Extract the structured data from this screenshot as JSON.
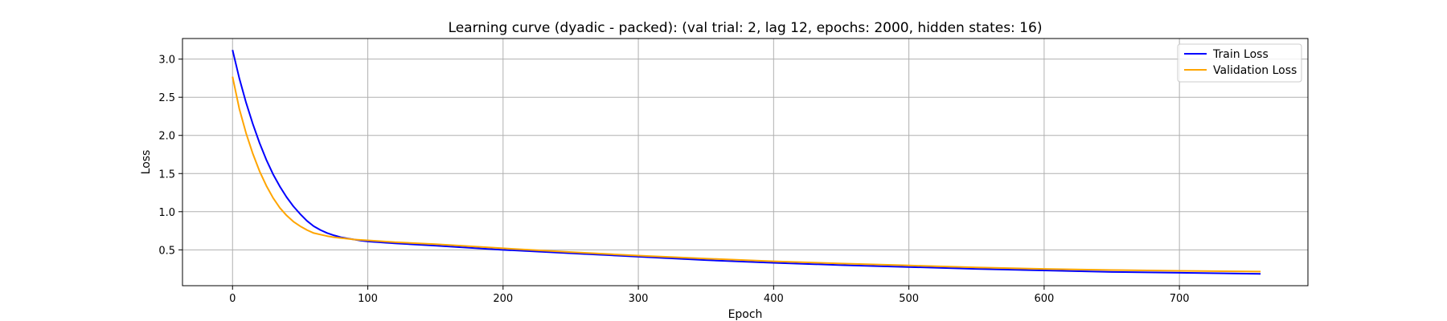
{
  "chart_data": {
    "type": "line",
    "title": "Learning curve (dyadic - packed): (val trial: 2, lag 12, epochs: 2000, hidden states: 16)",
    "xlabel": "Epoch",
    "ylabel": "Loss",
    "xlim": [
      -37,
      795
    ],
    "ylim": [
      0.03,
      3.27
    ],
    "xticks": [
      0,
      100,
      200,
      300,
      400,
      500,
      600,
      700
    ],
    "yticks": [
      0.5,
      1.0,
      1.5,
      2.0,
      2.5,
      3.0
    ],
    "xtick_labels": [
      "0",
      "100",
      "200",
      "300",
      "400",
      "500",
      "600",
      "700"
    ],
    "ytick_labels": [
      "0.5",
      "1.0",
      "1.5",
      "2.0",
      "2.5",
      "3.0"
    ],
    "grid": true,
    "legend_position": "top-right",
    "series": [
      {
        "name": "Train Loss",
        "color": "#0000ff",
        "x": [
          0,
          5,
          10,
          15,
          20,
          25,
          30,
          35,
          40,
          45,
          50,
          55,
          60,
          65,
          70,
          75,
          80,
          85,
          90,
          95,
          100,
          120,
          150,
          200,
          250,
          300,
          350,
          400,
          450,
          500,
          550,
          600,
          650,
          700,
          760
        ],
        "y": [
          3.12,
          2.75,
          2.43,
          2.15,
          1.9,
          1.68,
          1.49,
          1.33,
          1.19,
          1.07,
          0.97,
          0.88,
          0.81,
          0.76,
          0.72,
          0.69,
          0.665,
          0.65,
          0.635,
          0.62,
          0.61,
          0.585,
          0.555,
          0.5,
          0.455,
          0.41,
          0.365,
          0.33,
          0.3,
          0.275,
          0.25,
          0.23,
          0.21,
          0.2,
          0.185
        ]
      },
      {
        "name": "Validation Loss",
        "color": "#ffa500",
        "x": [
          0,
          5,
          10,
          15,
          20,
          25,
          30,
          35,
          40,
          45,
          50,
          55,
          60,
          65,
          70,
          75,
          80,
          85,
          90,
          95,
          100,
          120,
          150,
          200,
          250,
          300,
          350,
          400,
          450,
          500,
          550,
          600,
          650,
          700,
          760
        ],
        "y": [
          2.77,
          2.35,
          2.03,
          1.76,
          1.53,
          1.34,
          1.18,
          1.05,
          0.95,
          0.87,
          0.81,
          0.76,
          0.72,
          0.7,
          0.68,
          0.665,
          0.655,
          0.645,
          0.635,
          0.63,
          0.625,
          0.6,
          0.575,
          0.52,
          0.47,
          0.425,
          0.385,
          0.35,
          0.32,
          0.295,
          0.27,
          0.25,
          0.235,
          0.225,
          0.215
        ]
      }
    ]
  }
}
